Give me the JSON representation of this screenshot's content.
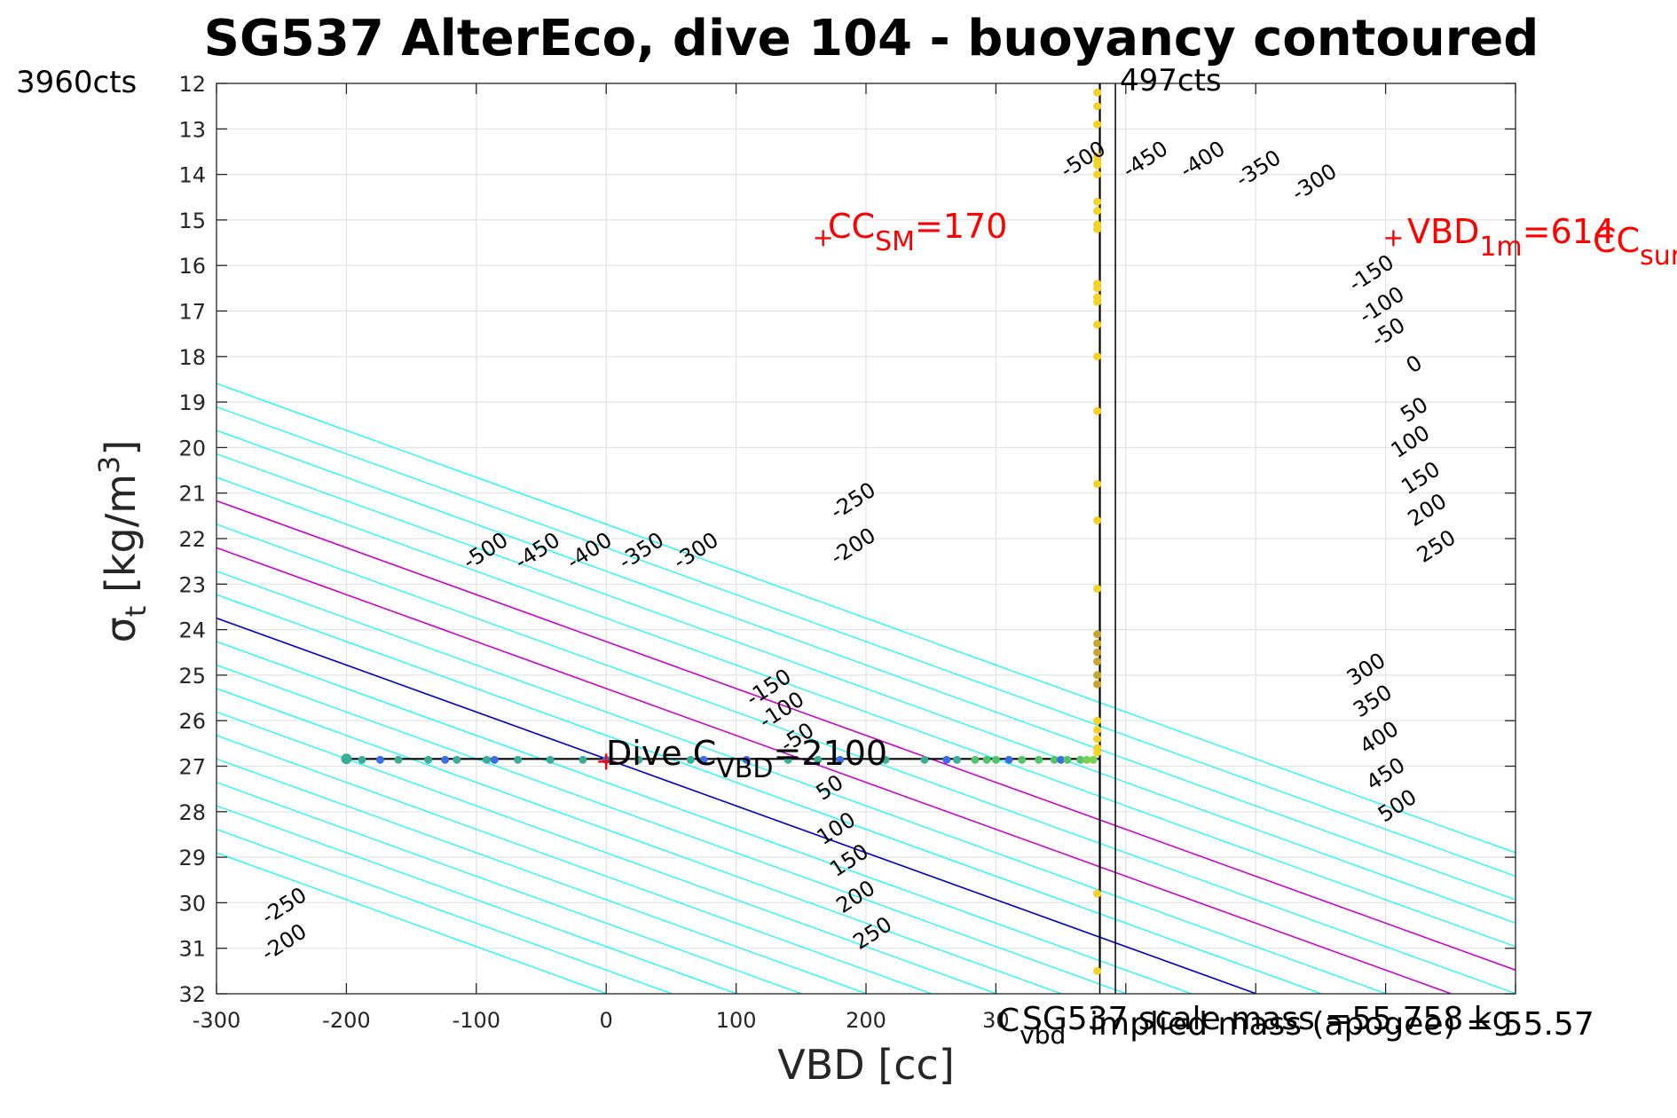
{
  "chart_data": {
    "type": "contour",
    "title": "SG537 AlterEco, dive 104 - buoyancy contoured",
    "xlabel": "VBD [cc]",
    "ylabel_main": "σ",
    "ylabel_sub": "t",
    "ylabel_units": " [kg/m",
    "ylabel_sup": "3",
    "ylabel_close": "]",
    "xlim": [
      -300,
      700
    ],
    "ylim": [
      12,
      32
    ],
    "x_reversed": false,
    "y_reversed": true,
    "grid": true,
    "xticks": [
      -300,
      -200,
      -100,
      0,
      100,
      200,
      300,
      400,
      500,
      600,
      700
    ],
    "xtick_labels_shown": [
      "-300",
      "-200",
      "-100",
      "0",
      "100",
      "200",
      "30"
    ],
    "yticks": [
      12,
      13,
      14,
      15,
      16,
      17,
      18,
      19,
      20,
      21,
      22,
      23,
      24,
      25,
      26,
      27,
      28,
      29,
      30,
      31,
      32
    ],
    "corner_left": "3960cts",
    "corner_right": "497cts",
    "buoyancy_contours": {
      "levels": [
        -500,
        -450,
        -400,
        -350,
        -300,
        -250,
        -200,
        -150,
        -100,
        -50,
        0,
        50,
        100,
        150,
        200,
        250,
        300,
        350,
        400,
        450,
        500
      ],
      "zero_vbd_at_sigma_26_84": 0,
      "colors": {
        "default": "#00ffff",
        "zero": "#0000cc",
        "bounds": "#cc00cc"
      },
      "highlight_levels": [
        150,
        250
      ],
      "labels": [
        {
          "text": "-500",
          "x": -90,
          "y": 22.4
        },
        {
          "text": "-450",
          "x": -50,
          "y": 22.4
        },
        {
          "text": "-400",
          "x": -10,
          "y": 22.4
        },
        {
          "text": "-350",
          "x": 30,
          "y": 22.4
        },
        {
          "text": "-300",
          "x": 72,
          "y": 22.4
        },
        {
          "text": "-250",
          "x": 193,
          "y": 21.3
        },
        {
          "text": "-200",
          "x": 193,
          "y": 22.3
        },
        {
          "text": "-150",
          "x": 128,
          "y": 25.4
        },
        {
          "text": "-100",
          "x": 138,
          "y": 25.9
        },
        {
          "text": "-50",
          "x": 150,
          "y": 26.5
        },
        {
          "text": "50",
          "x": 175,
          "y": 27.6
        },
        {
          "text": "100",
          "x": 180,
          "y": 28.5
        },
        {
          "text": "150",
          "x": 190,
          "y": 29.2
        },
        {
          "text": "200",
          "x": 195,
          "y": 30.0
        },
        {
          "text": "250",
          "x": 208,
          "y": 30.8
        },
        {
          "text": "-250",
          "x": -245,
          "y": 30.2
        },
        {
          "text": "-200",
          "x": -245,
          "y": 31.0
        },
        {
          "text": "-500",
          "x": 370,
          "y": 13.8
        },
        {
          "text": "-450",
          "x": 418,
          "y": 13.8
        },
        {
          "text": "-400",
          "x": 462,
          "y": 13.8
        },
        {
          "text": "-350",
          "x": 505,
          "y": 14.0
        },
        {
          "text": "-300",
          "x": 548,
          "y": 14.3
        },
        {
          "text": "-150",
          "x": 592,
          "y": 16.3
        },
        {
          "text": "-100",
          "x": 600,
          "y": 17.0
        },
        {
          "text": "-50",
          "x": 605,
          "y": 17.6
        },
        {
          "text": "0",
          "x": 625,
          "y": 18.3
        },
        {
          "text": "50",
          "x": 625,
          "y": 19.3
        },
        {
          "text": "100",
          "x": 622,
          "y": 20.0
        },
        {
          "text": "150",
          "x": 630,
          "y": 20.8
        },
        {
          "text": "200",
          "x": 635,
          "y": 21.5
        },
        {
          "text": "250",
          "x": 642,
          "y": 22.3
        },
        {
          "text": "300",
          "x": 588,
          "y": 25.0
        },
        {
          "text": "350",
          "x": 593,
          "y": 25.7
        },
        {
          "text": "400",
          "x": 598,
          "y": 26.5
        },
        {
          "text": "450",
          "x": 603,
          "y": 27.3
        },
        {
          "text": "500",
          "x": 612,
          "y": 28.0
        }
      ]
    },
    "dive_track": {
      "color": "#000000",
      "horizontal": {
        "x_start": -200,
        "x_end": 380,
        "y": 26.84
      },
      "vertical": {
        "x": 380,
        "y_start": 12.0,
        "y_end": 31.5
      },
      "points_horizontal": [
        {
          "x": -200,
          "y": 26.84,
          "c": "#3aaf98"
        },
        {
          "x": -188,
          "y": 26.86,
          "c": "#3aaf98"
        },
        {
          "x": -174,
          "y": 26.86,
          "c": "#3b6ee8"
        },
        {
          "x": -160,
          "y": 26.86,
          "c": "#3aaf98"
        },
        {
          "x": -137,
          "y": 26.86,
          "c": "#3aaf98"
        },
        {
          "x": -124,
          "y": 26.86,
          "c": "#3b6ee8"
        },
        {
          "x": -115,
          "y": 26.86,
          "c": "#3aaf98"
        },
        {
          "x": -92,
          "y": 26.86,
          "c": "#3aaf98"
        },
        {
          "x": -86,
          "y": 26.86,
          "c": "#3b6ee8"
        },
        {
          "x": -68,
          "y": 26.86,
          "c": "#3aaf98"
        },
        {
          "x": -43,
          "y": 26.86,
          "c": "#3aaf98"
        },
        {
          "x": -18,
          "y": 26.86,
          "c": "#3aaf98"
        },
        {
          "x": 0,
          "y": 26.86,
          "c": "#3b6ee8"
        },
        {
          "x": 25,
          "y": 26.86,
          "c": "#3aaf98"
        },
        {
          "x": 65,
          "y": 26.86,
          "c": "#3aaf98"
        },
        {
          "x": 75,
          "y": 26.86,
          "c": "#3b6ee8"
        },
        {
          "x": 108,
          "y": 26.86,
          "c": "#3b6ee8"
        },
        {
          "x": 140,
          "y": 26.86,
          "c": "#3aaf98"
        },
        {
          "x": 163,
          "y": 26.86,
          "c": "#3aaf98"
        },
        {
          "x": 180,
          "y": 26.86,
          "c": "#3b6ee8"
        },
        {
          "x": 215,
          "y": 26.86,
          "c": "#3aaf98"
        },
        {
          "x": 245,
          "y": 26.86,
          "c": "#3aaf98"
        },
        {
          "x": 262,
          "y": 26.86,
          "c": "#3b6ee8"
        },
        {
          "x": 270,
          "y": 26.86,
          "c": "#3aaf98"
        },
        {
          "x": 284,
          "y": 26.86,
          "c": "#52c569"
        },
        {
          "x": 293,
          "y": 26.86,
          "c": "#52c569"
        },
        {
          "x": 300,
          "y": 26.86,
          "c": "#52c569"
        },
        {
          "x": 310,
          "y": 26.86,
          "c": "#3b6ee8"
        },
        {
          "x": 320,
          "y": 26.86,
          "c": "#52c569"
        },
        {
          "x": 333,
          "y": 26.86,
          "c": "#52c569"
        },
        {
          "x": 345,
          "y": 26.86,
          "c": "#52c569"
        },
        {
          "x": 350,
          "y": 26.86,
          "c": "#3b6ee8"
        },
        {
          "x": 355,
          "y": 26.86,
          "c": "#52c569"
        },
        {
          "x": 365,
          "y": 26.86,
          "c": "#52c569"
        },
        {
          "x": 370,
          "y": 26.86,
          "c": "#79d151"
        },
        {
          "x": 375,
          "y": 26.86,
          "c": "#79d151"
        }
      ],
      "points_vertical": [
        12.2,
        12.5,
        12.9,
        13.6,
        13.7,
        13.8,
        14.0,
        14.6,
        14.8,
        15.1,
        15.2,
        16.4,
        16.5,
        16.7,
        16.8,
        17.3,
        18.0,
        19.2,
        20.8,
        21.6,
        23.1,
        24.1,
        24.3,
        24.5,
        24.7,
        25.0,
        25.2,
        26.0,
        26.2,
        26.4,
        26.6,
        26.7,
        29.8,
        31.5
      ],
      "vertical_color": "#f5d320",
      "vertical_mid_color": "#c8a52c"
    },
    "vertical_lines": [
      {
        "x": 380,
        "color": "#000000"
      },
      {
        "x": 392,
        "color": "#000000"
      }
    ],
    "markers": [
      {
        "x": 167,
        "y": 15.4,
        "color": "#ff0000"
      },
      {
        "x": 606,
        "y": 15.4,
        "color": "#ff0000"
      },
      {
        "x": 0,
        "y": 26.9,
        "color": "#ff0000"
      }
    ],
    "annotations": {
      "cc_sm": {
        "main": "CC",
        "sub": "SM",
        "tail": "=170"
      },
      "vbd_1m": {
        "main": "VBD",
        "sub": "1m",
        "tail": "=614"
      },
      "cc_sur": {
        "main": "CC",
        "sub": "sur"
      },
      "dive_c": {
        "main": "Dive C",
        "sub": "VBD",
        "tail": "=2100"
      },
      "c_vbd": {
        "main": "C",
        "sub": "vbd"
      },
      "scale_mass_text": "SG537 scale mass =55.758 kg",
      "implied_mass_text": "implied mass (apogee) = 55.57"
    }
  }
}
